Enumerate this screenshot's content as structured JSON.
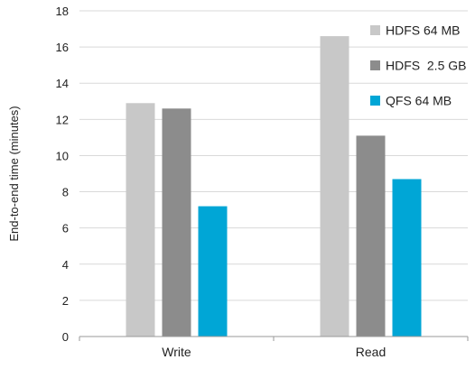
{
  "chart_data": {
    "type": "bar",
    "title": "",
    "xlabel": "",
    "ylabel": "End-to-end time (minutes)",
    "categories": [
      "Write",
      "Read"
    ],
    "series": [
      {
        "name": "HDFS 64 MB",
        "values": [
          12.9,
          16.6
        ],
        "color": "#c8c8c8"
      },
      {
        "name": "HDFS  2.5 GB",
        "values": [
          12.6,
          11.1
        ],
        "color": "#8c8c8c"
      },
      {
        "name": "QFS 64 MB",
        "values": [
          7.2,
          8.7
        ],
        "color": "#00a6d6"
      }
    ],
    "ylim": [
      0,
      18
    ],
    "yticks": [
      0,
      2,
      4,
      6,
      8,
      10,
      12,
      14,
      16,
      18
    ],
    "grid": true,
    "legend_position": "top-right"
  }
}
